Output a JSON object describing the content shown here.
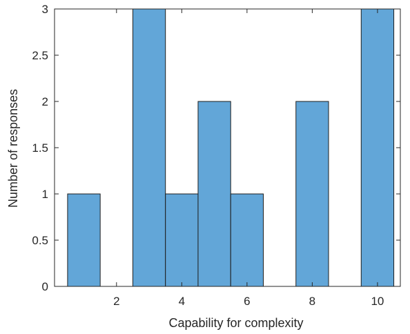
{
  "chart_data": {
    "type": "bar",
    "bins": [
      {
        "x0": 0.5,
        "x1": 1.5,
        "count": 1
      },
      {
        "x0": 1.5,
        "x1": 2.5,
        "count": 0
      },
      {
        "x0": 2.5,
        "x1": 3.5,
        "count": 3
      },
      {
        "x0": 3.5,
        "x1": 4.5,
        "count": 1
      },
      {
        "x0": 4.5,
        "x1": 5.5,
        "count": 2
      },
      {
        "x0": 5.5,
        "x1": 6.5,
        "count": 1
      },
      {
        "x0": 6.5,
        "x1": 7.5,
        "count": 0
      },
      {
        "x0": 7.5,
        "x1": 8.5,
        "count": 2
      },
      {
        "x0": 8.5,
        "x1": 9.5,
        "count": 0
      },
      {
        "x0": 9.5,
        "x1": 10.5,
        "count": 3
      }
    ],
    "xlabel": "Capability for complexity",
    "ylabel": "Number of responses",
    "xlim": [
      0.1,
      10.7
    ],
    "ylim": [
      0,
      3
    ],
    "xticks": [
      2,
      4,
      6,
      8,
      10
    ],
    "xtick_labels": [
      "2",
      "4",
      "6",
      "8",
      "10"
    ],
    "yticks": [
      0,
      0.5,
      1,
      1.5,
      2,
      2.5,
      3
    ],
    "ytick_labels": [
      "0",
      "0.5",
      "1",
      "1.5",
      "2",
      "2.5",
      "3"
    ],
    "bar_color": "#62a6d8",
    "edge_color": "#1e1e1e",
    "grid": false,
    "box": true
  }
}
